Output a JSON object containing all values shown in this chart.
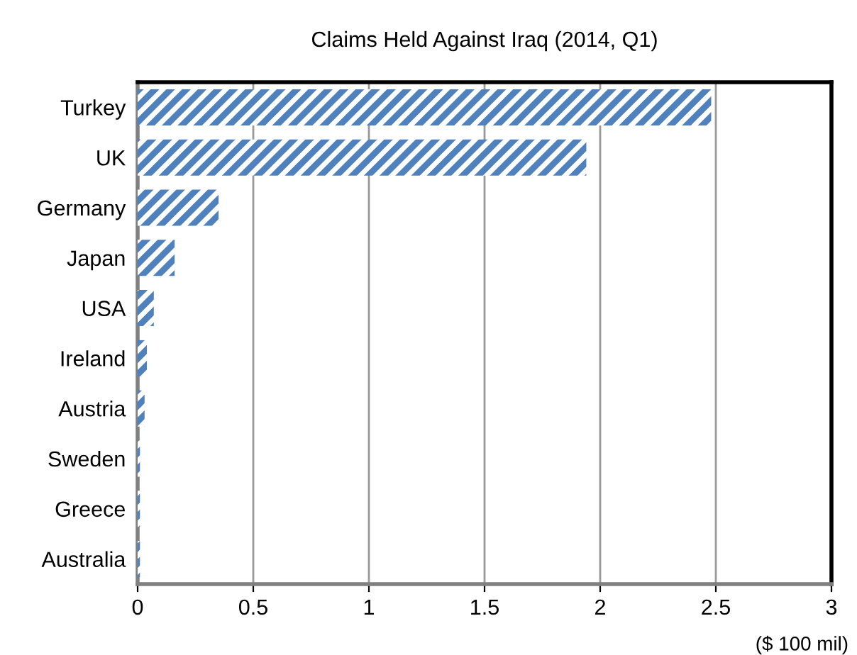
{
  "chart_data": {
    "type": "bar",
    "orientation": "horizontal",
    "title": "Claims Held Against Iraq (2014, Q1)",
    "xlabel": "($ 100 mil)",
    "categories": [
      "Turkey",
      "UK",
      "Germany",
      "Japan",
      "USA",
      "Ireland",
      "Austria",
      "Sweden",
      "Greece",
      "Australia"
    ],
    "values": [
      2.48,
      1.94,
      0.35,
      0.16,
      0.07,
      0.04,
      0.03,
      0.01,
      0.01,
      0.01
    ],
    "color": "#4f81bd",
    "xlim": [
      0,
      3
    ],
    "xticks": [
      0,
      0.5,
      1,
      1.5,
      2,
      2.5,
      3
    ],
    "grid": "x",
    "legend": false
  }
}
